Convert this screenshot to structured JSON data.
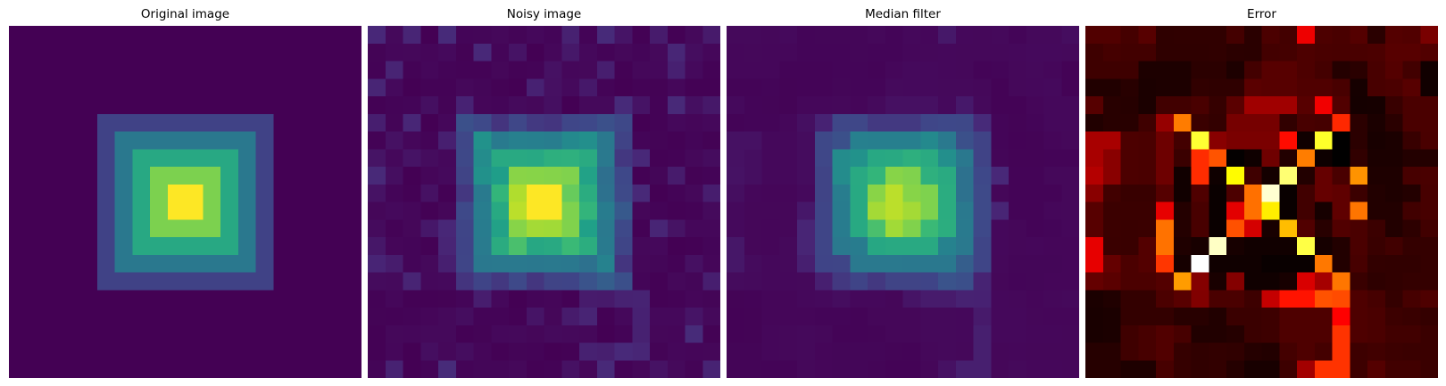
{
  "chart_data": [
    {
      "type": "heatmap",
      "title": "Original image",
      "colormap": "viridis",
      "grid": false,
      "vmin": 0,
      "vmax": 5
    },
    {
      "type": "heatmap",
      "title": "Noisy image",
      "colormap": "viridis",
      "grid": false,
      "vmin": 0,
      "vmax": 5
    },
    {
      "type": "heatmap",
      "title": "Median filter",
      "colormap": "viridis",
      "grid": false,
      "vmin": 0,
      "vmax": 5
    },
    {
      "type": "heatmap",
      "title": "Error",
      "colormap": "hot",
      "grid": false,
      "vmin": 0,
      "vmax": 1
    }
  ]
}
